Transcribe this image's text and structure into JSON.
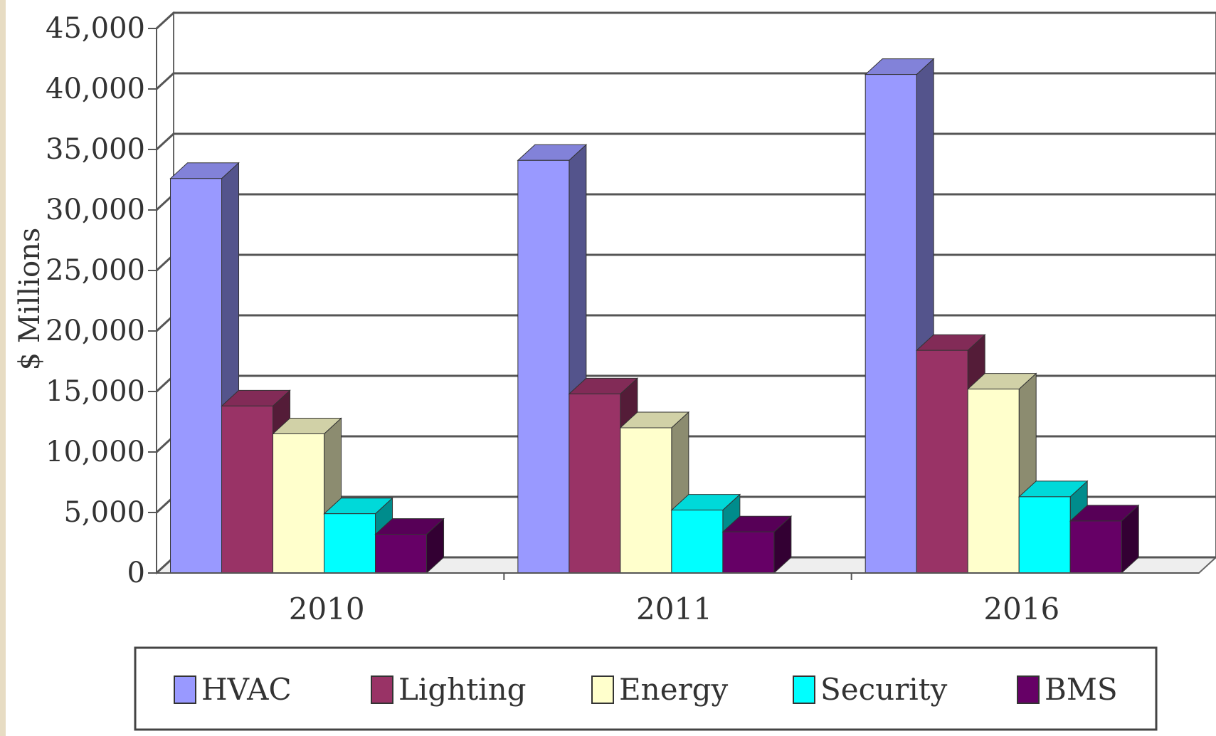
{
  "chart_data": {
    "type": "bar",
    "style": "3d-clustered",
    "title": "",
    "xlabel": "",
    "ylabel": "$ Millions",
    "ylim": [
      0,
      45000
    ],
    "yticks": [
      0,
      5000,
      10000,
      15000,
      20000,
      25000,
      30000,
      35000,
      40000,
      45000
    ],
    "ytick_labels": [
      "0",
      "5,000",
      "10,000",
      "15,000",
      "20,000",
      "25,000",
      "30,000",
      "35,000",
      "40,000",
      "45,000"
    ],
    "grid": true,
    "legend_position": "bottom",
    "categories": [
      "2010",
      "2011",
      "2016"
    ],
    "series": [
      {
        "name": "HVAC",
        "values": [
          32600,
          34100,
          41200
        ],
        "color": "#9999ff"
      },
      {
        "name": "Lighting",
        "values": [
          13800,
          14800,
          18400
        ],
        "color": "#993366"
      },
      {
        "name": "Energy",
        "values": [
          11500,
          12000,
          15200
        ],
        "color": "#ffffcc"
      },
      {
        "name": "Security",
        "values": [
          4900,
          5200,
          6300
        ],
        "color": "#00ffff"
      },
      {
        "name": "BMS",
        "values": [
          3200,
          3400,
          4300
        ],
        "color": "#660066"
      }
    ]
  }
}
